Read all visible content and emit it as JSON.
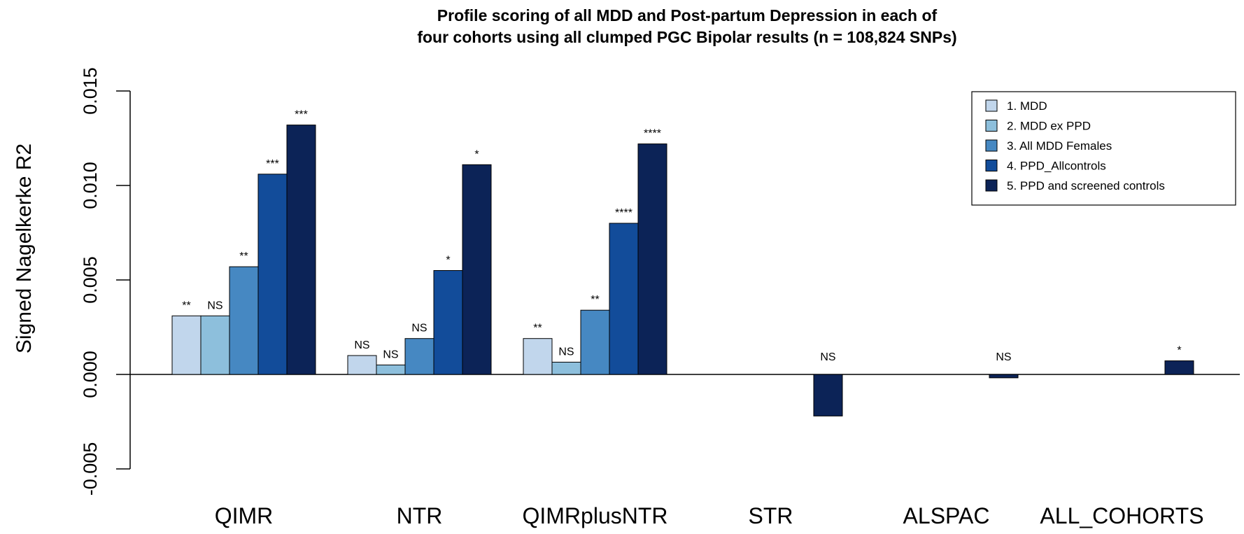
{
  "chart_data": {
    "type": "bar",
    "title_lines": [
      "Profile scoring of all MDD and Post-partum Depression in each of",
      "four cohorts using all clumped PGC Bipolar results (n = 108,824 SNPs)"
    ],
    "xlabel": "",
    "ylabel": "Signed Nagelkerke R2",
    "ylim": [
      -0.005,
      0.015
    ],
    "yticks": [
      "-0.005",
      "0.000",
      "0.005",
      "0.010",
      "0.015"
    ],
    "ytick_values": [
      -0.005,
      0.0,
      0.005,
      0.01,
      0.015
    ],
    "categories": [
      "QIMR",
      "NTR",
      "QIMRplusNTR",
      "STR",
      "ALSPAC",
      "ALL_COHORTS"
    ],
    "legend_position": "top-right",
    "grid": false,
    "series": [
      {
        "name": "1. MDD",
        "color": "#c1d6ec",
        "values": [
          0.0031,
          0.001,
          0.0019,
          null,
          null,
          null
        ],
        "labels": [
          "**",
          "NS",
          "**",
          "",
          "",
          ""
        ]
      },
      {
        "name": "2. MDD ex PPD",
        "color": "#8dbfdc",
        "values": [
          0.0031,
          0.0005,
          0.00065,
          null,
          null,
          null
        ],
        "labels": [
          "NS",
          "NS",
          "NS",
          "",
          "",
          ""
        ]
      },
      {
        "name": "3. All MDD Females",
        "color": "#4688c2",
        "values": [
          0.0057,
          0.0019,
          0.0034,
          null,
          null,
          null
        ],
        "labels": [
          "**",
          "NS",
          "**",
          "",
          "",
          ""
        ]
      },
      {
        "name": "4. PPD_Allcontrols",
        "color": "#124c9a",
        "values": [
          0.0106,
          0.0055,
          0.008,
          null,
          null,
          null
        ],
        "labels": [
          "***",
          "*",
          "****",
          "",
          "",
          ""
        ]
      },
      {
        "name": "5. PPD and screened controls",
        "color": "#0c2357",
        "values": [
          0.0132,
          0.0111,
          0.0122,
          -0.0022,
          -0.00018,
          0.00072
        ],
        "labels": [
          "***",
          "*",
          "****",
          "NS",
          "NS",
          "*"
        ]
      }
    ]
  }
}
